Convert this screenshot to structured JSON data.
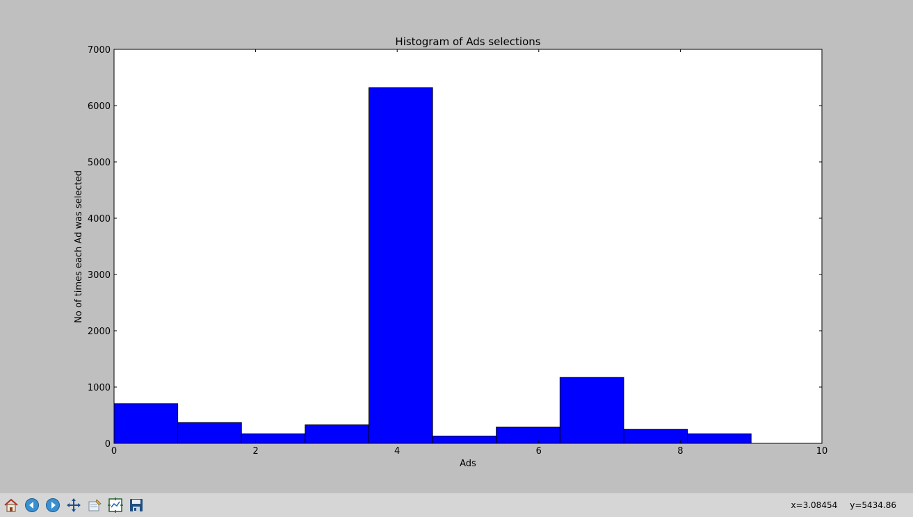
{
  "chart_data": {
    "type": "bar",
    "title": "Histogram of Ads selections",
    "xlabel": "Ads",
    "ylabel": "No of times each Ad was selected",
    "xlim": [
      0,
      10
    ],
    "ylim": [
      0,
      7000
    ],
    "bin_edges": [
      0,
      0.9,
      1.8,
      2.7,
      3.6,
      4.5,
      5.4,
      6.3,
      7.2,
      8.1,
      9.0
    ],
    "values": [
      705,
      370,
      170,
      330,
      6320,
      130,
      290,
      1170,
      250,
      170
    ],
    "x_ticks": [
      0,
      2,
      4,
      6,
      8,
      10
    ],
    "y_ticks": [
      0,
      1000,
      2000,
      3000,
      4000,
      5000,
      6000,
      7000
    ],
    "bar_color": "#0000ff",
    "edge_color": "#000000",
    "grid": false,
    "legend": false
  },
  "toolbar": {
    "buttons": [
      {
        "name": "home-button",
        "icon": "home-icon"
      },
      {
        "name": "back-button",
        "icon": "arrow-left-icon"
      },
      {
        "name": "forward-button",
        "icon": "arrow-right-icon"
      },
      {
        "name": "pan-button",
        "icon": "move-icon"
      },
      {
        "name": "zoom-button",
        "icon": "zoom-rect-icon"
      },
      {
        "name": "subplots-button",
        "icon": "subplots-icon"
      },
      {
        "name": "save-button",
        "icon": "floppy-icon"
      }
    ],
    "coord_x": "x=3.08454",
    "coord_y": "y=5434.86"
  },
  "colors": {
    "figure_bg": "#bfbfbf",
    "toolbar_bg": "#d6d6d6"
  }
}
